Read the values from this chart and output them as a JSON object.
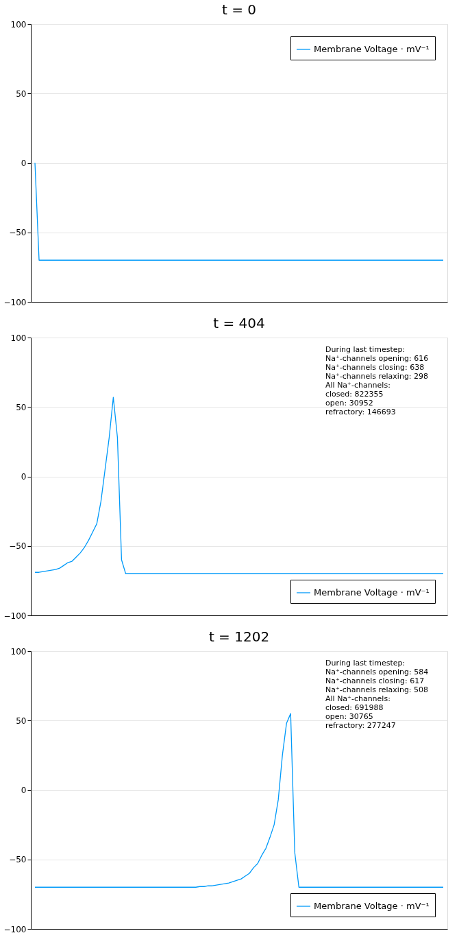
{
  "chart_data": [
    {
      "type": "line",
      "title": "t = 0",
      "categories": [
        null,
        null,
        null,
        null,
        null,
        null,
        null,
        null,
        null,
        null,
        null,
        null,
        null,
        null,
        null,
        null,
        null,
        null,
        null,
        null,
        null,
        null,
        null,
        null,
        null,
        null,
        null,
        null,
        null,
        null,
        null,
        null,
        null,
        null,
        null,
        null,
        null,
        null,
        null,
        null,
        null,
        null,
        null,
        null,
        null,
        null,
        null,
        null,
        null,
        null,
        null,
        null,
        null,
        null,
        null,
        null,
        null,
        null,
        null,
        null,
        null,
        null,
        null,
        null,
        null,
        null,
        null,
        null,
        null,
        null,
        null,
        null,
        null,
        null,
        null,
        null,
        null,
        null,
        null,
        null,
        null,
        null,
        null,
        null,
        null,
        null,
        null,
        null,
        null,
        null,
        null,
        null,
        null,
        null,
        null,
        null,
        null,
        null,
        null,
        null
      ],
      "series": [
        {
          "name": "Membrane Voltage · mV⁻¹",
          "color": "#009af9",
          "values": [
            0,
            -70,
            -70,
            -70,
            -70,
            -70,
            -70,
            -70,
            -70,
            -70,
            -70,
            -70,
            -70,
            -70,
            -70,
            -70,
            -70,
            -70,
            -70,
            -70,
            -70,
            -70,
            -70,
            -70,
            -70,
            -70,
            -70,
            -70,
            -70,
            -70,
            -70,
            -70,
            -70,
            -70,
            -70,
            -70,
            -70,
            -70,
            -70,
            -70,
            -70,
            -70,
            -70,
            -70,
            -70,
            -70,
            -70,
            -70,
            -70,
            -70,
            -70,
            -70,
            -70,
            -70,
            -70,
            -70,
            -70,
            -70,
            -70,
            -70,
            -70,
            -70,
            -70,
            -70,
            -70,
            -70,
            -70,
            -70,
            -70,
            -70,
            -70,
            -70,
            -70,
            -70,
            -70,
            -70,
            -70,
            -70,
            -70,
            -70,
            -70,
            -70,
            -70,
            -70,
            -70,
            -70,
            -70,
            -70,
            -70,
            -70,
            -70,
            -70,
            -70,
            -70,
            -70,
            -70,
            -70,
            -70,
            -70,
            -70
          ]
        }
      ],
      "ylim": [
        -100,
        100
      ],
      "yticks": [
        -100,
        -50,
        0,
        50,
        100
      ],
      "grid": "y",
      "legend": "top right",
      "tick_labels": "y"
    },
    {
      "type": "line",
      "title": "t = 404",
      "categories": [
        null,
        null,
        null,
        null,
        null,
        null,
        null,
        null,
        null,
        null,
        null,
        null,
        null,
        null,
        null,
        null,
        null,
        null,
        null,
        null,
        null,
        null,
        null,
        null,
        null,
        null,
        null,
        null,
        null,
        null,
        null,
        null,
        null,
        null,
        null,
        null,
        null,
        null,
        null,
        null,
        null,
        null,
        null,
        null,
        null,
        null,
        null,
        null,
        null,
        null,
        null,
        null,
        null,
        null,
        null,
        null,
        null,
        null,
        null,
        null,
        null,
        null,
        null,
        null,
        null,
        null,
        null,
        null,
        null,
        null,
        null,
        null,
        null,
        null,
        null,
        null,
        null,
        null,
        null,
        null,
        null,
        null,
        null,
        null,
        null,
        null,
        null,
        null,
        null,
        null,
        null,
        null,
        null,
        null,
        null,
        null,
        null,
        null,
        null,
        null
      ],
      "series": [
        {
          "name": "Membrane Voltage · mV⁻¹",
          "color": "#009af9",
          "values": [
            -69,
            -69,
            -68.5,
            -68,
            -67.5,
            -67,
            -66,
            -64,
            -62,
            -61,
            -58,
            -55,
            -51,
            -46,
            -40,
            -34,
            -18,
            5,
            28,
            57,
            28,
            -60,
            -70,
            -70,
            -70,
            -70,
            -70,
            -70,
            -70,
            -70,
            -70,
            -70,
            -70,
            -70,
            -70,
            -70,
            -70,
            -70,
            -70,
            -70,
            -70,
            -70,
            -70,
            -70,
            -70,
            -70,
            -70,
            -70,
            -70,
            -70,
            -70,
            -70,
            -70,
            -70,
            -70,
            -70,
            -70,
            -70,
            -70,
            -70,
            -70,
            -70,
            -70,
            -70,
            -70,
            -70,
            -70,
            -70,
            -70,
            -70,
            -70,
            -70,
            -70,
            -70,
            -70,
            -70,
            -70,
            -70,
            -70,
            -70,
            -70,
            -70,
            -70,
            -70,
            -70,
            -70,
            -70,
            -70,
            -70,
            -70,
            -70,
            -70,
            -70,
            -70,
            -70,
            -70,
            -70,
            -70,
            -70,
            -70
          ]
        }
      ],
      "annotations": [
        "During last timestep:\nNa⁺-channels opening:  616\nNa⁺-channels closing:  638\nNa⁺-channels relaxing: 298\n\nAll Na⁺-channels:\nclosed:     822355\nopen:       30952\nrefractory: 146693"
      ],
      "ylim": [
        -100,
        100
      ],
      "yticks": [
        -100,
        -50,
        0,
        50,
        100
      ],
      "grid": "y",
      "legend": "bottom right",
      "tick_labels": "y"
    },
    {
      "type": "line",
      "title": "t = 1202",
      "categories": [
        null,
        null,
        null,
        null,
        null,
        null,
        null,
        null,
        null,
        null,
        null,
        null,
        null,
        null,
        null,
        null,
        null,
        null,
        null,
        null,
        null,
        null,
        null,
        null,
        null,
        null,
        null,
        null,
        null,
        null,
        null,
        null,
        null,
        null,
        null,
        null,
        null,
        null,
        null,
        null,
        null,
        null,
        null,
        null,
        null,
        null,
        null,
        null,
        null,
        null,
        null,
        null,
        null,
        null,
        null,
        null,
        null,
        null,
        null,
        null,
        null,
        null,
        null,
        null,
        null,
        null,
        null,
        null,
        null,
        null,
        null,
        null,
        null,
        null,
        null,
        null,
        null,
        null,
        null,
        null,
        null,
        null,
        null,
        null,
        null,
        null,
        null,
        null,
        null,
        null,
        null,
        null,
        null,
        null,
        null,
        null,
        null,
        null,
        null,
        null
      ],
      "series": [
        {
          "name": "Membrane Voltage · mV⁻¹",
          "color": "#009af9",
          "values": [
            -70,
            -70,
            -70,
            -70,
            -70,
            -70,
            -70,
            -70,
            -70,
            -70,
            -70,
            -70,
            -70,
            -70,
            -70,
            -70,
            -70,
            -70,
            -70,
            -70,
            -70,
            -70,
            -70,
            -70,
            -70,
            -70,
            -70,
            -70,
            -70,
            -70,
            -70,
            -70,
            -70,
            -70,
            -70,
            -70,
            -70,
            -70,
            -70,
            -70,
            -69.5,
            -69.5,
            -69,
            -69,
            -68.5,
            -68,
            -67.5,
            -67,
            -66,
            -65,
            -64,
            -62,
            -60,
            -56,
            -53,
            -47,
            -42,
            -34,
            -25,
            -7,
            25,
            48,
            55,
            -45,
            -70,
            -70,
            -70,
            -70,
            -70,
            -70,
            -70,
            -70,
            -70,
            -70,
            -70,
            -70,
            -70,
            -70,
            -70,
            -70,
            -70,
            -70,
            -70,
            -70,
            -70,
            -70,
            -70,
            -70,
            -70,
            -70,
            -70,
            -70,
            -70,
            -70,
            -70,
            -70,
            -70,
            -70,
            -70,
            -70
          ]
        }
      ],
      "annotations": [
        "During last timestep:\nNa⁺-channels opening:  584\nNa⁺-channels closing:  617\nNa⁺-channels relaxing: 508\n\nAll Na⁺-channels:\nclosed:     691988\nopen:       30765\nrefractory: 277247"
      ],
      "ylim": [
        -100,
        100
      ],
      "yticks": [
        -100,
        -50,
        0,
        50,
        100
      ],
      "grid": "y",
      "legend": "bottom right",
      "tick_labels": "y"
    }
  ]
}
